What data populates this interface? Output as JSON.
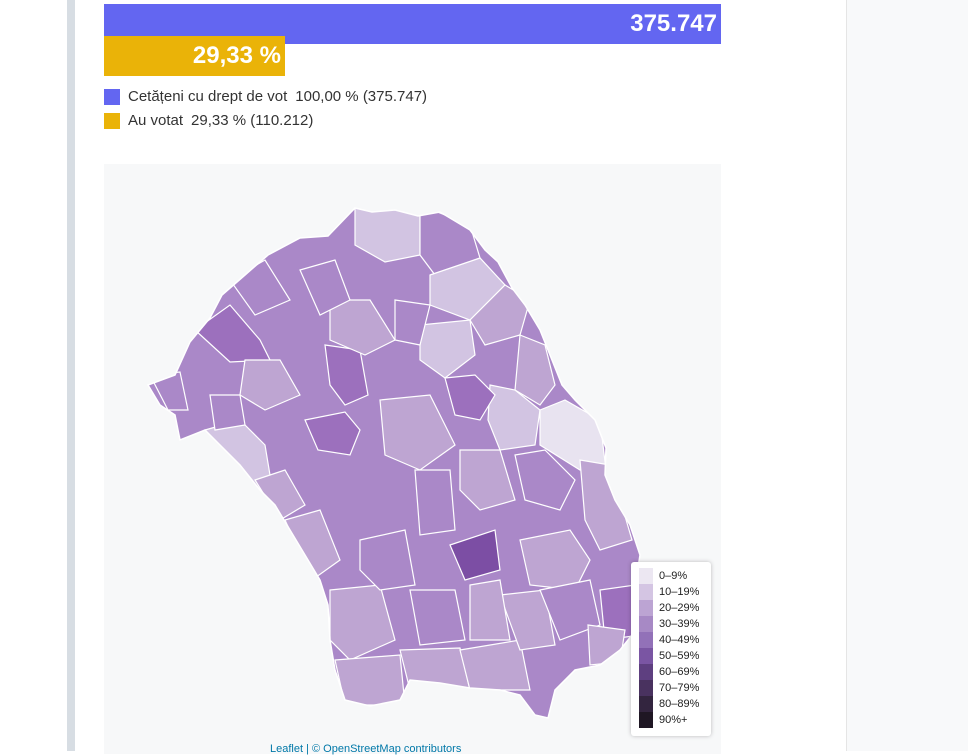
{
  "bars": {
    "total_value": "375.747",
    "voted_value": "29,33 %",
    "total_color": "#6366f1",
    "voted_color": "#eab308"
  },
  "legend": [
    {
      "label": "Cetățeni cu drept de vot",
      "value": "100,00 % (375.747)",
      "color": "#6366f1"
    },
    {
      "label": "Au votat",
      "value": "29,33 % (110.212)",
      "color": "#eab308"
    }
  ],
  "map": {
    "region_colors": {
      "0-9": "#e8e3f0",
      "10-19": "#d2c4e2",
      "20-29": "#bea5d2",
      "30-39": "#aa88c8",
      "40-49": "#9c70bd",
      "50-59": "#7c4ea4"
    }
  },
  "scale": [
    {
      "label": "0–9%",
      "color": "#ece7f2"
    },
    {
      "label": "10–19%",
      "color": "#d4c5e3"
    },
    {
      "label": "20–29%",
      "color": "#bca4d3"
    },
    {
      "label": "30–39%",
      "color": "#a789c5"
    },
    {
      "label": "40–49%",
      "color": "#9271b8"
    },
    {
      "label": "50–59%",
      "color": "#7a55a3"
    },
    {
      "label": "60–69%",
      "color": "#5e3f80"
    },
    {
      "label": "70–79%",
      "color": "#49325f"
    },
    {
      "label": "80–89%",
      "color": "#33253f"
    },
    {
      "label": "90%+",
      "color": "#1f1724"
    }
  ],
  "credits": "Leaflet | © OpenStreetMap contributors"
}
